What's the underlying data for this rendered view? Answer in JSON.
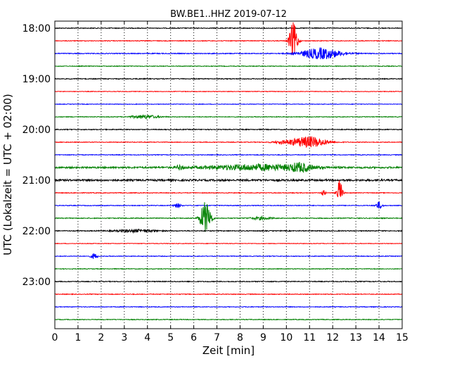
{
  "chart_data": {
    "type": "line",
    "title": "BW.BE1..HHZ 2019-07-12",
    "xlabel": "Zeit  [min]",
    "ylabel": "UTC (Lokalzeit = UTC + 02:00)",
    "xlim": [
      0,
      15
    ],
    "x_ticks": [
      "0",
      "1",
      "2",
      "3",
      "4",
      "5",
      "6",
      "7",
      "8",
      "9",
      "10",
      "11",
      "12",
      "13",
      "14",
      "15"
    ],
    "y_ticks": [
      "18:00",
      "19:00",
      "20:00",
      "21:00",
      "22:00",
      "23:00"
    ],
    "grid": true,
    "trace_colors": [
      "#000000",
      "#ff0000",
      "#0000ff",
      "#008000"
    ],
    "traces": [
      {
        "start": "18:00",
        "color": "#000000",
        "noise": 0.6,
        "events": []
      },
      {
        "start": "18:15",
        "color": "#ff0000",
        "noise": 0.5,
        "events": [
          {
            "t": 10.3,
            "amp": 26,
            "dur": 0.12
          }
        ]
      },
      {
        "start": "18:30",
        "color": "#0000ff",
        "noise": 0.6,
        "events": [
          {
            "t": 11.5,
            "amp": 8,
            "dur": 0.6
          }
        ]
      },
      {
        "start": "18:45",
        "color": "#008000",
        "noise": 0.5,
        "events": []
      },
      {
        "start": "19:00",
        "color": "#000000",
        "noise": 0.6,
        "events": []
      },
      {
        "start": "19:15",
        "color": "#ff0000",
        "noise": 0.4,
        "events": []
      },
      {
        "start": "19:30",
        "color": "#0000ff",
        "noise": 0.4,
        "events": []
      },
      {
        "start": "19:45",
        "color": "#008000",
        "noise": 0.5,
        "events": [
          {
            "t": 3.9,
            "amp": 2.5,
            "dur": 0.4
          }
        ]
      },
      {
        "start": "20:00",
        "color": "#000000",
        "noise": 0.6,
        "events": []
      },
      {
        "start": "20:15",
        "color": "#ff0000",
        "noise": 0.5,
        "events": [
          {
            "t": 11.0,
            "amp": 8,
            "dur": 0.5
          },
          {
            "t": 10.0,
            "amp": 2,
            "dur": 0.4
          }
        ]
      },
      {
        "start": "20:30",
        "color": "#0000ff",
        "noise": 0.5,
        "events": []
      },
      {
        "start": "20:45",
        "color": "#008000",
        "noise": 1.2,
        "events": [
          {
            "t": 8.8,
            "amp": 4,
            "dur": 1.5
          },
          {
            "t": 10.6,
            "amp": 5,
            "dur": 0.3
          },
          {
            "t": 5.4,
            "amp": 3,
            "dur": 0.1
          }
        ]
      },
      {
        "start": "21:00",
        "color": "#000000",
        "noise": 1.3,
        "events": []
      },
      {
        "start": "21:15",
        "color": "#ff0000",
        "noise": 0.5,
        "events": [
          {
            "t": 12.3,
            "amp": 18,
            "dur": 0.08
          },
          {
            "t": 11.6,
            "amp": 5,
            "dur": 0.05
          }
        ]
      },
      {
        "start": "21:30",
        "color": "#0000ff",
        "noise": 0.5,
        "events": [
          {
            "t": 14.0,
            "amp": 5,
            "dur": 0.1
          },
          {
            "t": 5.3,
            "amp": 3,
            "dur": 0.1
          }
        ]
      },
      {
        "start": "21:45",
        "color": "#008000",
        "noise": 0.6,
        "events": [
          {
            "t": 6.5,
            "amp": 24,
            "dur": 0.15
          },
          {
            "t": 6.7,
            "amp": 6,
            "dur": 0.05
          },
          {
            "t": 8.9,
            "amp": 2,
            "dur": 0.3
          }
        ]
      },
      {
        "start": "22:00",
        "color": "#000000",
        "noise": 0.6,
        "events": [
          {
            "t": 3.5,
            "amp": 2,
            "dur": 0.6
          }
        ]
      },
      {
        "start": "22:15",
        "color": "#ff0000",
        "noise": 0.4,
        "events": []
      },
      {
        "start": "22:30",
        "color": "#0000ff",
        "noise": 0.5,
        "events": [
          {
            "t": 1.7,
            "amp": 4,
            "dur": 0.1
          }
        ]
      },
      {
        "start": "22:45",
        "color": "#008000",
        "noise": 0.5,
        "events": []
      },
      {
        "start": "23:00",
        "color": "#000000",
        "noise": 0.6,
        "events": []
      },
      {
        "start": "23:15",
        "color": "#ff0000",
        "noise": 0.5,
        "events": []
      },
      {
        "start": "23:30",
        "color": "#0000ff",
        "noise": 0.5,
        "events": []
      },
      {
        "start": "23:45",
        "color": "#008000",
        "noise": 0.5,
        "events": []
      }
    ]
  }
}
